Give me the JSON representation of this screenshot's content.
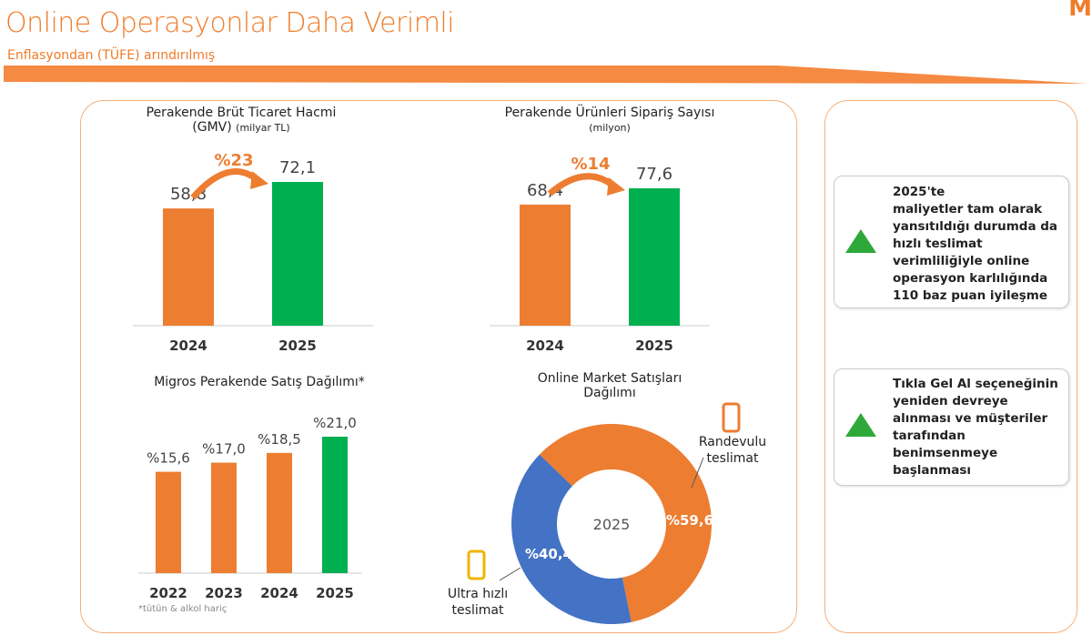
{
  "header": {
    "title": "Online Operasyonlar Daha Verimli",
    "subtitle": "Enflasyondan (TÜFE) arındırılmış",
    "logo": "M"
  },
  "colors": {
    "orange": "#ed7d31",
    "green": "#00b050",
    "blue": "#4472c4"
  },
  "chart_data": [
    {
      "type": "bar",
      "title": "Perakende Brüt Ticaret Hacmi",
      "subtitle": "(GMV)",
      "unit": "(milyar TL)",
      "categories": [
        "2024",
        "2025"
      ],
      "values": [
        58.8,
        72.1
      ],
      "labels": [
        "58,8",
        "72,1"
      ],
      "growth_label": "%23",
      "ylim": [
        0,
        80
      ]
    },
    {
      "type": "bar",
      "title": "Perakende Ürünleri Sipariş Sayısı",
      "unit": "(milyon)",
      "categories": [
        "2024",
        "2025"
      ],
      "values": [
        68.4,
        77.6
      ],
      "labels": [
        "68,4",
        "77,6"
      ],
      "growth_label": "%14",
      "ylim": [
        0,
        100
      ]
    },
    {
      "type": "bar",
      "title": "Migros Perakende Satış Dağılımı*",
      "categories": [
        "2022",
        "2023",
        "2024",
        "2025"
      ],
      "values": [
        15.6,
        17.0,
        18.5,
        21.0
      ],
      "labels": [
        "%15,6",
        "%17,0",
        "%18,5",
        "%21,0"
      ],
      "ylim": [
        0,
        30
      ],
      "footnote": "*tütün & alkol hariç"
    },
    {
      "type": "pie",
      "title": "Online Market Satışları Dağılımı",
      "center_label": "2025",
      "slices": [
        {
          "name": "Randevulu teslimat",
          "value": 59.6,
          "label": "%59,6",
          "color": "#ed7d31"
        },
        {
          "name": "Ultra hızlı teslimat",
          "value": 40.4,
          "label": "%40,4",
          "color": "#4472c4"
        }
      ]
    }
  ],
  "info": [
    {
      "lines": [
        "2025'te",
        "maliyetler tam olarak",
        "yansıtıldığı durumda da",
        "hızlı teslimat",
        "verimliliğiyle online",
        "operasyon karlılığında",
        "110 baz puan iyileşme"
      ]
    },
    {
      "lines": [
        "Tıkla Gel Al seçeneğinin",
        "yeniden devreye",
        "alınması ve müşteriler",
        "tarafından",
        "benimsenmeye",
        "başlanması"
      ]
    }
  ]
}
